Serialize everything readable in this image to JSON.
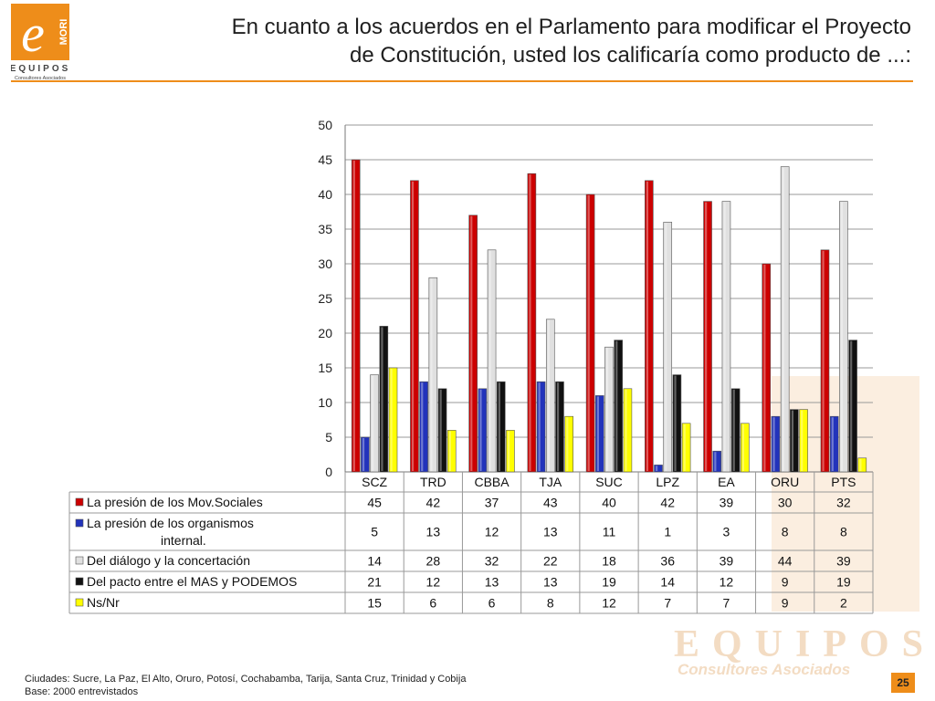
{
  "header": {
    "title_line1": "En cuanto a los acuerdos en el Parlamento para modificar el Proyecto",
    "title_line2": "de Constitución, usted los calificaría como producto de ...:"
  },
  "logo": {
    "letter": "e",
    "side_text": "MORI",
    "brand": "EQUIPOS",
    "tagline": "Consultores Asociados"
  },
  "watermark": {
    "brand": "EQUIPOS",
    "tagline": "Consultores Asociados"
  },
  "chart_data": {
    "type": "bar",
    "categories": [
      "SCZ",
      "TRD",
      "CBBA",
      "TJA",
      "SUC",
      "LPZ",
      "EA",
      "ORU",
      "PTS"
    ],
    "ylim": [
      0,
      50
    ],
    "yticks": [
      "0",
      "5",
      "10",
      "15",
      "20",
      "25",
      "30",
      "35",
      "40",
      "45",
      "50"
    ],
    "grid": true,
    "legend": "data-table-below",
    "series": [
      {
        "name": "La presión de los Mov.Sociales",
        "label_lines": [
          "La presión de los Mov.Sociales"
        ],
        "color": "#cc0000",
        "values": [
          45,
          42,
          37,
          43,
          40,
          42,
          39,
          30,
          32
        ]
      },
      {
        "name": "La presión de los organismos internal.",
        "label_lines": [
          "La presión de los organismos",
          "internal."
        ],
        "color": "#2233bb",
        "values": [
          5,
          13,
          12,
          13,
          11,
          1,
          3,
          8,
          8
        ]
      },
      {
        "name": "Del diálogo y la concertación",
        "label_lines": [
          "Del diálogo y la concertación"
        ],
        "color": "#e0e0e0",
        "values": [
          14,
          28,
          32,
          22,
          18,
          36,
          39,
          44,
          39
        ]
      },
      {
        "name": "Del pacto entre el MAS y PODEMOS",
        "label_lines": [
          "Del pacto entre el MAS y PODEMOS"
        ],
        "color": "#111111",
        "values": [
          21,
          12,
          13,
          13,
          19,
          14,
          12,
          9,
          19
        ]
      },
      {
        "name": "Ns/Nr",
        "label_lines": [
          "Ns/Nr"
        ],
        "color": "#ffff00",
        "values": [
          15,
          6,
          6,
          8,
          12,
          7,
          7,
          9,
          2
        ]
      }
    ]
  },
  "footer": {
    "line1": "Ciudades: Sucre, La Paz, El Alto, Oruro, Potosí, Cochabamba, Tarija, Santa Cruz, Trinidad y Cobija",
    "line2": "Base: 2000 entrevistados"
  },
  "page_number": "25"
}
